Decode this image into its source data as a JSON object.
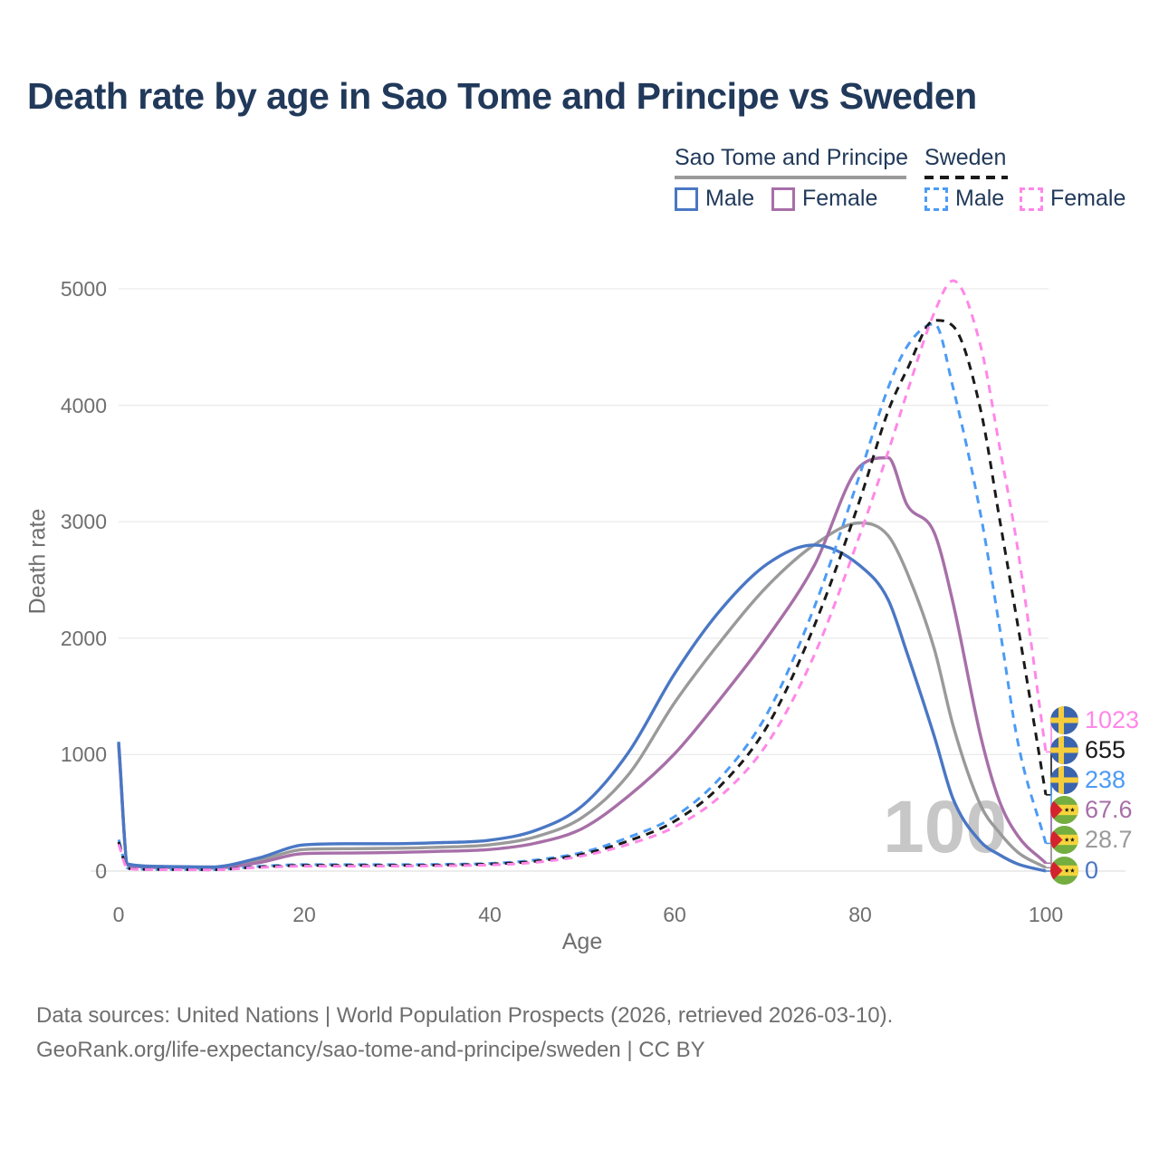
{
  "header": {
    "title": "Death rate by age in Sao Tome and Principe vs Sweden"
  },
  "legend": {
    "groups": [
      {
        "label": "Sao Tome and Principe",
        "line_style": "solid",
        "line_color": "#9a9a9a",
        "items": [
          {
            "label": "Male",
            "color": "#4a77c4",
            "dash": false
          },
          {
            "label": "Female",
            "color": "#a76fa8",
            "dash": false
          }
        ]
      },
      {
        "label": "Sweden",
        "line_style": "dashed",
        "line_color": "#1a1a1a",
        "items": [
          {
            "label": "Male",
            "color": "#4c9bf5",
            "dash": true
          },
          {
            "label": "Female",
            "color": "#ff87e8",
            "dash": true
          }
        ]
      }
    ]
  },
  "chart_data": {
    "type": "line",
    "title": "Death rate by age in Sao Tome and Principe vs Sweden",
    "xlabel": "Age",
    "ylabel": "Death rate",
    "xlim": [
      0,
      100
    ],
    "ylim": [
      0,
      5000
    ],
    "x_ticks": [
      0,
      20,
      40,
      60,
      80,
      100
    ],
    "y_ticks": [
      0,
      1000,
      2000,
      3000,
      4000,
      5000
    ],
    "grid": "horizontal",
    "legend_position": "top-right",
    "x": [
      0,
      1,
      5,
      10,
      15,
      20,
      25,
      30,
      35,
      40,
      45,
      50,
      55,
      60,
      65,
      70,
      75,
      80,
      83,
      85,
      88,
      90,
      93,
      95,
      97,
      100
    ],
    "series": [
      {
        "name": "Sao Tome and Principe Male",
        "color": "#4a77c4",
        "dash": false,
        "values": [
          1110,
          60,
          40,
          35,
          110,
          225,
          235,
          235,
          245,
          265,
          350,
          560,
          1020,
          1700,
          2250,
          2640,
          2800,
          2620,
          2330,
          1880,
          1150,
          620,
          250,
          140,
          60,
          0
        ]
      },
      {
        "name": "Sao Tome and Principe Total",
        "color": "#9a9a9a",
        "dash": false,
        "values": [
          1095,
          55,
          35,
          30,
          90,
          185,
          192,
          196,
          205,
          225,
          295,
          460,
          830,
          1450,
          1980,
          2450,
          2800,
          2990,
          2880,
          2570,
          1900,
          1250,
          560,
          330,
          160,
          28.7
        ]
      },
      {
        "name": "Sao Tome and Principe Female",
        "color": "#a76fa8",
        "dash": false,
        "values": [
          1080,
          50,
          30,
          25,
          70,
          150,
          155,
          160,
          170,
          185,
          240,
          365,
          645,
          1010,
          1490,
          2010,
          2620,
          3480,
          3550,
          3150,
          2900,
          2300,
          1150,
          600,
          300,
          67.6
        ]
      },
      {
        "name": "Sweden Male",
        "color": "#4c9bf5",
        "dash": true,
        "values": [
          270,
          25,
          15,
          12,
          40,
          55,
          55,
          55,
          58,
          65,
          95,
          160,
          290,
          470,
          810,
          1360,
          2260,
          3420,
          4150,
          4500,
          4700,
          4150,
          3050,
          2100,
          1100,
          238
        ]
      },
      {
        "name": "Sweden Total",
        "color": "#1a1a1a",
        "dash": true,
        "values": [
          250,
          22,
          13,
          11,
          35,
          48,
          48,
          48,
          52,
          60,
          85,
          145,
          260,
          430,
          740,
          1250,
          2100,
          3200,
          3950,
          4300,
          4730,
          4680,
          3950,
          3030,
          2100,
          655
        ]
      },
      {
        "name": "Sweden Female",
        "color": "#ff87e8",
        "dash": true,
        "values": [
          230,
          20,
          12,
          10,
          30,
          42,
          42,
          43,
          46,
          52,
          75,
          130,
          230,
          380,
          650,
          1100,
          1850,
          2900,
          3600,
          4100,
          4800,
          5070,
          4500,
          3650,
          2750,
          1023
        ]
      }
    ],
    "end_labels": [
      {
        "value": "1023",
        "color": "#ff87e8",
        "flag": "sweden",
        "series": 5
      },
      {
        "value": "655",
        "color": "#1a1a1a",
        "flag": "sweden",
        "series": 4
      },
      {
        "value": "238",
        "color": "#4c9bf5",
        "flag": "sweden",
        "series": 3
      },
      {
        "value": "67.6",
        "color": "#a76fa8",
        "flag": "sao-tome",
        "series": 2
      },
      {
        "value": "28.7",
        "color": "#9a9a9a",
        "flag": "sao-tome",
        "series": 1
      },
      {
        "value": "0",
        "color": "#4a77c4",
        "flag": "sao-tome",
        "series": 0
      }
    ],
    "watermark": "100"
  },
  "icons": {
    "sweden_flag": "sweden-flag-icon",
    "sao_tome_flag": "sao-tome-flag-icon"
  },
  "colors": {
    "title_text": "#21395a",
    "axis_text": "#6f6f6f",
    "gridline": "#e9e9e9",
    "watermark": "#c7c7c7",
    "footer_text": "#6e6e6e"
  },
  "footer": {
    "line1": "Data sources: United Nations | World Population Prospects (2026, retrieved 2026-03-10).",
    "line2": "GeoRank.org/life-expectancy/sao-tome-and-principe/sweden | CC BY"
  }
}
